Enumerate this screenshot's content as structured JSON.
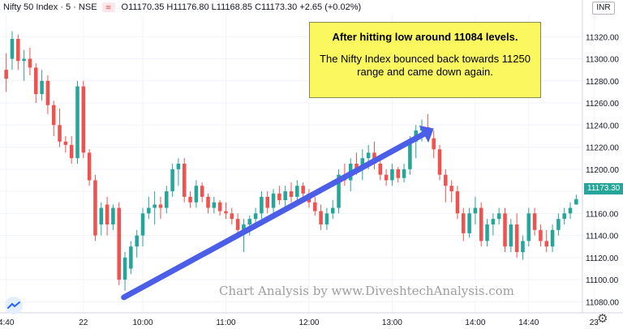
{
  "header": {
    "symbol": "Nifty 50 Index · 5 · NSE",
    "ohlc": "O11170.35 H11176.80 L11168.85 C11173.30 +2.65 (+0.02%)",
    "badge_icon": "flag-icon"
  },
  "currency": "INR",
  "last_price": "11173.30",
  "annotation": {
    "title": "After hitting low around 11084 levels.",
    "body": "The Nifty Index bounced back towards 11250 range and came down again."
  },
  "watermark": "Chart Analysis by www.DiveshtechAnalysis.com",
  "colors": {
    "up": "#26a69a",
    "down": "#ef5350",
    "arrow": "#4b5ee8",
    "note_bg": "#fbf75f"
  },
  "chart_data": {
    "type": "candlestick",
    "ylim": [
      11070,
      11340
    ],
    "y_ticks": [
      11080,
      11100,
      11120,
      11140,
      11160,
      11180,
      11200,
      11220,
      11240,
      11260,
      11280,
      11300,
      11320
    ],
    "x_ticks": [
      "4:40",
      "22",
      "10:00",
      "11:00",
      "12:00",
      "13:00",
      "14:00",
      "14:40",
      "23"
    ],
    "x_tick_index": [
      0,
      13,
      23,
      37,
      51,
      65,
      79,
      88,
      99
    ],
    "candles": [
      {
        "o": 11290,
        "h": 11305,
        "l": 11270,
        "c": 11282
      },
      {
        "o": 11300,
        "h": 11325,
        "l": 11290,
        "c": 11318
      },
      {
        "o": 11318,
        "h": 11322,
        "l": 11290,
        "c": 11298
      },
      {
        "o": 11298,
        "h": 11308,
        "l": 11280,
        "c": 11300
      },
      {
        "o": 11300,
        "h": 11310,
        "l": 11285,
        "c": 11292
      },
      {
        "o": 11292,
        "h": 11296,
        "l": 11260,
        "c": 11268
      },
      {
        "o": 11268,
        "h": 11290,
        "l": 11262,
        "c": 11280
      },
      {
        "o": 11280,
        "h": 11285,
        "l": 11250,
        "c": 11258
      },
      {
        "o": 11258,
        "h": 11262,
        "l": 11230,
        "c": 11240
      },
      {
        "o": 11240,
        "h": 11255,
        "l": 11220,
        "c": 11225
      },
      {
        "o": 11225,
        "h": 11230,
        "l": 11215,
        "c": 11222
      },
      {
        "o": 11222,
        "h": 11230,
        "l": 11205,
        "c": 11210
      },
      {
        "o": 11210,
        "h": 11280,
        "l": 11205,
        "c": 11275
      },
      {
        "o": 11275,
        "h": 11280,
        "l": 11210,
        "c": 11215
      },
      {
        "o": 11215,
        "h": 11218,
        "l": 11185,
        "c": 11190
      },
      {
        "o": 11190,
        "h": 11195,
        "l": 11135,
        "c": 11140
      },
      {
        "o": 11150,
        "h": 11170,
        "l": 11140,
        "c": 11165
      },
      {
        "o": 11168,
        "h": 11175,
        "l": 11140,
        "c": 11150
      },
      {
        "o": 11150,
        "h": 11168,
        "l": 11145,
        "c": 11165
      },
      {
        "o": 11165,
        "h": 11170,
        "l": 11095,
        "c": 11100
      },
      {
        "o": 11100,
        "h": 11125,
        "l": 11090,
        "c": 11120
      },
      {
        "o": 11110,
        "h": 11135,
        "l": 11105,
        "c": 11130
      },
      {
        "o": 11130,
        "h": 11145,
        "l": 11120,
        "c": 11140
      },
      {
        "o": 11140,
        "h": 11165,
        "l": 11130,
        "c": 11160
      },
      {
        "o": 11160,
        "h": 11175,
        "l": 11155,
        "c": 11165
      },
      {
        "o": 11165,
        "h": 11180,
        "l": 11150,
        "c": 11168
      },
      {
        "o": 11168,
        "h": 11175,
        "l": 11155,
        "c": 11165
      },
      {
        "o": 11165,
        "h": 11185,
        "l": 11160,
        "c": 11180
      },
      {
        "o": 11180,
        "h": 11205,
        "l": 11175,
        "c": 11200
      },
      {
        "o": 11200,
        "h": 11210,
        "l": 11185,
        "c": 11205
      },
      {
        "o": 11205,
        "h": 11210,
        "l": 11170,
        "c": 11175
      },
      {
        "o": 11175,
        "h": 11180,
        "l": 11165,
        "c": 11170
      },
      {
        "o": 11170,
        "h": 11190,
        "l": 11165,
        "c": 11185
      },
      {
        "o": 11185,
        "h": 11188,
        "l": 11170,
        "c": 11175
      },
      {
        "o": 11175,
        "h": 11178,
        "l": 11160,
        "c": 11165
      },
      {
        "o": 11165,
        "h": 11175,
        "l": 11160,
        "c": 11170
      },
      {
        "o": 11170,
        "h": 11172,
        "l": 11158,
        "c": 11162
      },
      {
        "o": 11162,
        "h": 11170,
        "l": 11155,
        "c": 11160
      },
      {
        "o": 11160,
        "h": 11165,
        "l": 11150,
        "c": 11155
      },
      {
        "o": 11155,
        "h": 11160,
        "l": 11140,
        "c": 11145
      },
      {
        "o": 11145,
        "h": 11155,
        "l": 11125,
        "c": 11150
      },
      {
        "o": 11150,
        "h": 11158,
        "l": 11140,
        "c": 11155
      },
      {
        "o": 11155,
        "h": 11165,
        "l": 11150,
        "c": 11160
      },
      {
        "o": 11160,
        "h": 11180,
        "l": 11155,
        "c": 11175
      },
      {
        "o": 11175,
        "h": 11180,
        "l": 11160,
        "c": 11165
      },
      {
        "o": 11165,
        "h": 11182,
        "l": 11160,
        "c": 11178
      },
      {
        "o": 11178,
        "h": 11185,
        "l": 11168,
        "c": 11172
      },
      {
        "o": 11172,
        "h": 11185,
        "l": 11165,
        "c": 11180
      },
      {
        "o": 11180,
        "h": 11188,
        "l": 11170,
        "c": 11175
      },
      {
        "o": 11175,
        "h": 11190,
        "l": 11170,
        "c": 11185
      },
      {
        "o": 11185,
        "h": 11188,
        "l": 11172,
        "c": 11178
      },
      {
        "o": 11178,
        "h": 11182,
        "l": 11165,
        "c": 11170
      },
      {
        "o": 11170,
        "h": 11175,
        "l": 11158,
        "c": 11162
      },
      {
        "o": 11162,
        "h": 11168,
        "l": 11145,
        "c": 11150
      },
      {
        "o": 11150,
        "h": 11165,
        "l": 11145,
        "c": 11160
      },
      {
        "o": 11160,
        "h": 11172,
        "l": 11155,
        "c": 11165
      },
      {
        "o": 11165,
        "h": 11200,
        "l": 11160,
        "c": 11195
      },
      {
        "o": 11195,
        "h": 11205,
        "l": 11185,
        "c": 11190
      },
      {
        "o": 11190,
        "h": 11210,
        "l": 11180,
        "c": 11205
      },
      {
        "o": 11205,
        "h": 11215,
        "l": 11195,
        "c": 11200
      },
      {
        "o": 11200,
        "h": 11218,
        "l": 11190,
        "c": 11210
      },
      {
        "o": 11210,
        "h": 11222,
        "l": 11200,
        "c": 11215
      },
      {
        "o": 11215,
        "h": 11225,
        "l": 11200,
        "c": 11205
      },
      {
        "o": 11205,
        "h": 11210,
        "l": 11190,
        "c": 11195
      },
      {
        "o": 11195,
        "h": 11200,
        "l": 11185,
        "c": 11190
      },
      {
        "o": 11190,
        "h": 11205,
        "l": 11185,
        "c": 11200
      },
      {
        "o": 11200,
        "h": 11202,
        "l": 11188,
        "c": 11192
      },
      {
        "o": 11192,
        "h": 11205,
        "l": 11188,
        "c": 11200
      },
      {
        "o": 11200,
        "h": 11230,
        "l": 11195,
        "c": 11225
      },
      {
        "o": 11225,
        "h": 11240,
        "l": 11210,
        "c": 11235
      },
      {
        "o": 11235,
        "h": 11245,
        "l": 11225,
        "c": 11238
      },
      {
        "o": 11238,
        "h": 11250,
        "l": 11225,
        "c": 11228
      },
      {
        "o": 11228,
        "h": 11235,
        "l": 11210,
        "c": 11218
      },
      {
        "o": 11218,
        "h": 11222,
        "l": 11190,
        "c": 11195
      },
      {
        "o": 11195,
        "h": 11200,
        "l": 11170,
        "c": 11185
      },
      {
        "o": 11185,
        "h": 11190,
        "l": 11170,
        "c": 11180
      },
      {
        "o": 11180,
        "h": 11185,
        "l": 11155,
        "c": 11160
      },
      {
        "o": 11160,
        "h": 11165,
        "l": 11135,
        "c": 11142
      },
      {
        "o": 11142,
        "h": 11165,
        "l": 11138,
        "c": 11160
      },
      {
        "o": 11160,
        "h": 11175,
        "l": 11150,
        "c": 11165
      },
      {
        "o": 11165,
        "h": 11170,
        "l": 11130,
        "c": 11135
      },
      {
        "o": 11135,
        "h": 11155,
        "l": 11130,
        "c": 11150
      },
      {
        "o": 11150,
        "h": 11160,
        "l": 11140,
        "c": 11155
      },
      {
        "o": 11155,
        "h": 11165,
        "l": 11150,
        "c": 11160
      },
      {
        "o": 11160,
        "h": 11165,
        "l": 11125,
        "c": 11130
      },
      {
        "o": 11130,
        "h": 11155,
        "l": 11125,
        "c": 11150
      },
      {
        "o": 11150,
        "h": 11160,
        "l": 11120,
        "c": 11125
      },
      {
        "o": 11125,
        "h": 11140,
        "l": 11118,
        "c": 11135
      },
      {
        "o": 11135,
        "h": 11165,
        "l": 11130,
        "c": 11160
      },
      {
        "o": 11160,
        "h": 11165,
        "l": 11140,
        "c": 11145
      },
      {
        "o": 11145,
        "h": 11150,
        "l": 11130,
        "c": 11135
      },
      {
        "o": 11135,
        "h": 11145,
        "l": 11125,
        "c": 11130
      },
      {
        "o": 11130,
        "h": 11150,
        "l": 11125,
        "c": 11145
      },
      {
        "o": 11145,
        "h": 11160,
        "l": 11140,
        "c": 11155
      },
      {
        "o": 11155,
        "h": 11165,
        "l": 11150,
        "c": 11160
      },
      {
        "o": 11160,
        "h": 11170,
        "l": 11155,
        "c": 11165
      },
      {
        "o": 11168,
        "h": 11177,
        "l": 11168,
        "c": 11173
      }
    ],
    "trend_arrow": {
      "from_index": 19,
      "from_value": 11084,
      "to_index": 72,
      "to_value": 11250
    }
  }
}
